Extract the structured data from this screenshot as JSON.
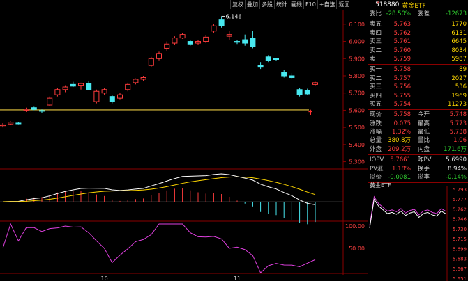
{
  "toolbar": [
    "复权",
    "叠加",
    "多股",
    "统计",
    "画线",
    "F10",
    "+自选",
    "返回"
  ],
  "security": {
    "flag": "R",
    "code": "518880",
    "name": "黄金ETF"
  },
  "header_rows": [
    {
      "l1": "委比",
      "v1": "-28.50%",
      "c1": "green",
      "l2": "委差",
      "v2": "-12673",
      "c2": "green"
    }
  ],
  "asks": [
    {
      "label": "卖五",
      "price": "5.763",
      "vol": "1770"
    },
    {
      "label": "卖四",
      "price": "5.762",
      "vol": "6131"
    },
    {
      "label": "卖三",
      "price": "5.761",
      "vol": "6645"
    },
    {
      "label": "卖二",
      "price": "5.760",
      "vol": "8034"
    },
    {
      "label": "卖一",
      "price": "5.759",
      "vol": "5987"
    }
  ],
  "bids": [
    {
      "label": "买一",
      "price": "5.758",
      "vol": "89"
    },
    {
      "label": "买二",
      "price": "5.757",
      "vol": "2027"
    },
    {
      "label": "买三",
      "price": "5.756",
      "vol": "536"
    },
    {
      "label": "买四",
      "price": "5.755",
      "vol": "1969"
    },
    {
      "label": "买五",
      "price": "5.754",
      "vol": "11273"
    }
  ],
  "stats": [
    {
      "l1": "现价",
      "v1": "5.758",
      "c1": "red",
      "l2": "今开",
      "v2": "5.748",
      "c2": "red"
    },
    {
      "l1": "涨跌",
      "v1": "0.075",
      "c1": "red",
      "l2": "最高",
      "v2": "5.773",
      "c2": "red"
    },
    {
      "l1": "涨幅",
      "v1": "1.32%",
      "c1": "red",
      "l2": "最低",
      "v2": "5.738",
      "c2": "red"
    },
    {
      "l1": "总量",
      "v1": "380.8万",
      "c1": "yellow",
      "l2": "量比",
      "v2": "1.06",
      "c2": "red"
    },
    {
      "l1": "外盘",
      "v1": "209.2万",
      "c1": "red",
      "l2": "内盘",
      "v2": "171.6万",
      "c2": "green"
    }
  ],
  "iopv": [
    {
      "l1": "IOPV",
      "v1": "5.7661",
      "c1": "red",
      "l2": "昨PV",
      "v2": "5.6990",
      "c2": "white"
    },
    {
      "l1": "PV涨",
      "v1": "1.18%",
      "c1": "red",
      "l2": "换手",
      "v2": "8.94%",
      "c2": "white"
    },
    {
      "l1": "溢价",
      "v1": "-0.0081",
      "c1": "green",
      "l2": "溢率",
      "v2": "-0.14%",
      "c2": "green"
    }
  ],
  "mini_chart": {
    "title": "黄金ETF",
    "ticks": [
      "5.793",
      "5.777",
      "5.762",
      "5.746",
      "5.730",
      "5.715",
      "5.699",
      "5.683",
      "5.667",
      "5.651"
    ]
  },
  "colors": {
    "up": "#ff3c3c",
    "down": "#48e8f0",
    "dif": "#ffffff",
    "dea": "#ffd700",
    "rsi": "#e040e0",
    "grid": "#8b0000"
  },
  "chart_data": {
    "type": "candlestick",
    "y_ticks": [
      6.1,
      6.0,
      5.9,
      5.8,
      5.7,
      5.6,
      5.5,
      5.4,
      5.3
    ],
    "ylim": [
      5.27,
      6.16
    ],
    "x_labels": [
      "10",
      "11"
    ],
    "max_label": "6.146",
    "ref_price": 5.602,
    "candles": [
      {
        "o": 5.51,
        "h": 5.525,
        "l": 5.5,
        "c": 5.515
      },
      {
        "o": 5.52,
        "h": 5.535,
        "l": 5.515,
        "c": 5.53
      },
      {
        "o": 5.525,
        "h": 5.532,
        "l": 5.518,
        "c": 5.522
      },
      {
        "o": 5.6,
        "h": 5.615,
        "l": 5.59,
        "c": 5.605
      },
      {
        "o": 5.615,
        "h": 5.62,
        "l": 5.6,
        "c": 5.605
      },
      {
        "o": 5.598,
        "h": 5.605,
        "l": 5.585,
        "c": 5.595
      },
      {
        "o": 5.63,
        "h": 5.68,
        "l": 5.625,
        "c": 5.67
      },
      {
        "o": 5.69,
        "h": 5.73,
        "l": 5.68,
        "c": 5.72
      },
      {
        "o": 5.72,
        "h": 5.745,
        "l": 5.705,
        "c": 5.735
      },
      {
        "o": 5.75,
        "h": 5.765,
        "l": 5.735,
        "c": 5.74
      },
      {
        "o": 5.745,
        "h": 5.76,
        "l": 5.72,
        "c": 5.755
      },
      {
        "o": 5.755,
        "h": 5.77,
        "l": 5.715,
        "c": 5.72
      },
      {
        "o": 5.65,
        "h": 5.72,
        "l": 5.64,
        "c": 5.71
      },
      {
        "o": 5.7,
        "h": 5.73,
        "l": 5.69,
        "c": 5.72
      },
      {
        "o": 5.68,
        "h": 5.69,
        "l": 5.64,
        "c": 5.65
      },
      {
        "o": 5.67,
        "h": 5.7,
        "l": 5.66,
        "c": 5.69
      },
      {
        "o": 5.72,
        "h": 5.76,
        "l": 5.71,
        "c": 5.75
      },
      {
        "o": 5.76,
        "h": 5.785,
        "l": 5.75,
        "c": 5.78
      },
      {
        "o": 5.78,
        "h": 5.8,
        "l": 5.77,
        "c": 5.79
      },
      {
        "o": 5.86,
        "h": 5.91,
        "l": 5.85,
        "c": 5.9
      },
      {
        "o": 5.9,
        "h": 5.94,
        "l": 5.89,
        "c": 5.93
      },
      {
        "o": 5.96,
        "h": 6.0,
        "l": 5.945,
        "c": 5.985
      },
      {
        "o": 5.99,
        "h": 6.03,
        "l": 5.98,
        "c": 6.02
      },
      {
        "o": 6.02,
        "h": 6.05,
        "l": 6.015,
        "c": 6.04
      },
      {
        "o": 6.0,
        "h": 6.01,
        "l": 5.975,
        "c": 5.985
      },
      {
        "o": 5.99,
        "h": 6.01,
        "l": 5.98,
        "c": 6.0
      },
      {
        "o": 6.0,
        "h": 6.035,
        "l": 5.99,
        "c": 6.025
      },
      {
        "o": 6.06,
        "h": 6.1,
        "l": 6.05,
        "c": 6.09
      },
      {
        "o": 6.125,
        "h": 6.146,
        "l": 6.08,
        "c": 6.09
      },
      {
        "o": 6.03,
        "h": 6.06,
        "l": 6.01,
        "c": 6.04
      },
      {
        "o": 6.0,
        "h": 6.01,
        "l": 5.985,
        "c": 5.995
      },
      {
        "o": 6.01,
        "h": 6.04,
        "l": 5.975,
        "c": 5.99
      },
      {
        "o": 6.02,
        "h": 6.06,
        "l": 5.96,
        "c": 5.97
      },
      {
        "o": 5.86,
        "h": 5.88,
        "l": 5.84,
        "c": 5.85
      },
      {
        "o": 5.91,
        "h": 5.92,
        "l": 5.88,
        "c": 5.89
      },
      {
        "o": 5.9,
        "h": 5.905,
        "l": 5.885,
        "c": 5.895
      },
      {
        "o": 5.82,
        "h": 5.835,
        "l": 5.79,
        "c": 5.8
      },
      {
        "o": 5.8,
        "h": 5.815,
        "l": 5.78,
        "c": 5.79
      },
      {
        "o": 5.72,
        "h": 5.73,
        "l": 5.68,
        "c": 5.69
      },
      {
        "o": 5.715,
        "h": 5.725,
        "l": 5.69,
        "c": 5.695
      },
      {
        "o": 5.75,
        "h": 5.765,
        "l": 5.745,
        "c": 5.76
      }
    ],
    "rsi_ticks": [
      "100.00",
      "50.00"
    ]
  }
}
